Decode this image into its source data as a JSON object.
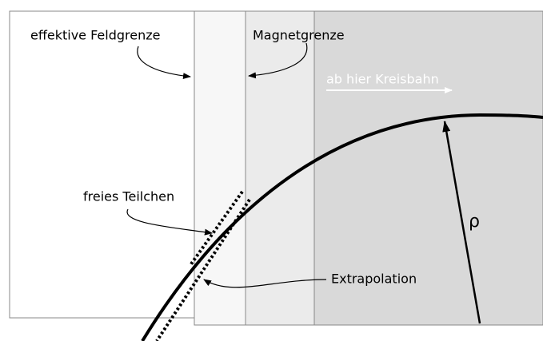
{
  "labels": {
    "effective_boundary": "effektive Feldgrenze",
    "magnet_boundary": "Magnetgrenze",
    "circular_path": "ab hier Kreisbahn",
    "free_particle": "freies Teilchen",
    "extrapolation": "Extrapolation",
    "radius": "ρ"
  }
}
